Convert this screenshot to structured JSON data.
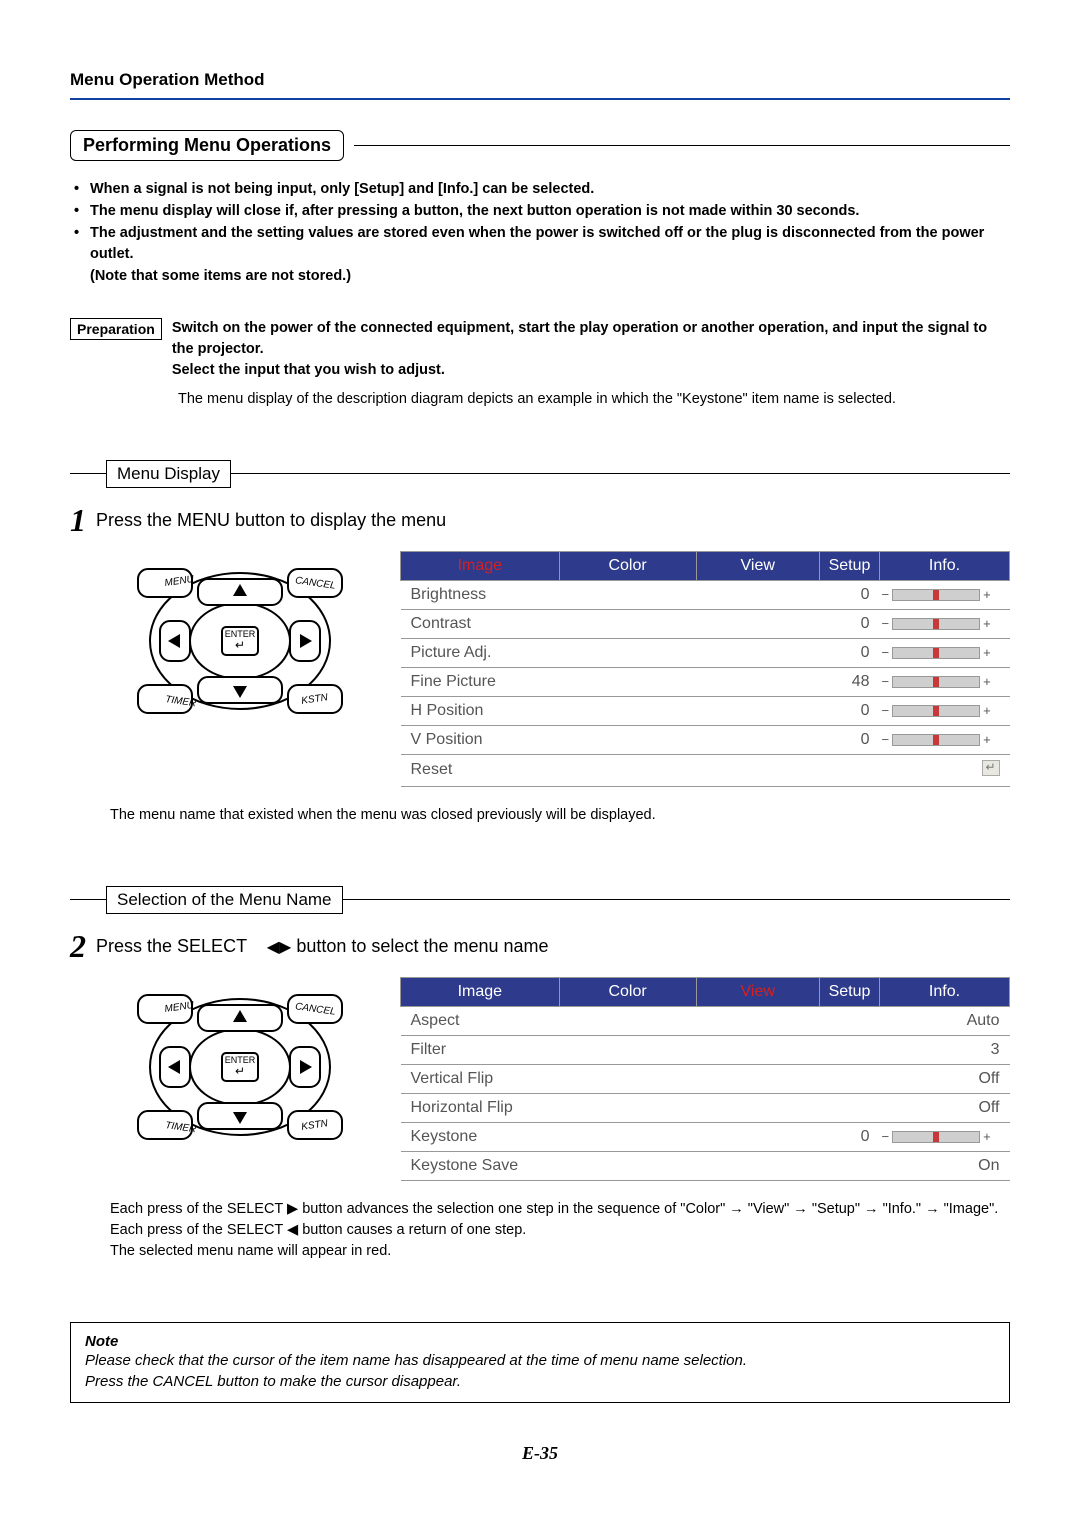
{
  "header": {
    "title": "Menu Operation Method"
  },
  "section": {
    "title": "Performing Menu Operations"
  },
  "bullets": [
    "When a signal is not being input, only [Setup] and [Info.] can be selected.",
    "The menu display will close if, after pressing a button, the next button operation is not made within 30 seconds.",
    "The adjustment and the setting values are stored even when the power is switched off or the plug is disconnected from the power outlet.",
    "(Note that some items are not stored.)"
  ],
  "preparation": {
    "label": "Preparation",
    "bold_line1": "Switch on the power of the connected equipment, start the play operation or another operation, and input the signal to the projector.",
    "bold_line2": "Select the input that you wish to adjust.",
    "plain_line": "The menu display of the description diagram depicts an example in which the \"Keystone\" item name is selected."
  },
  "remote_labels": {
    "menu": "MENU",
    "cancel": "CANCEL",
    "enter": "ENTER",
    "timer": "TIMER",
    "kstn": "KSTN"
  },
  "step1": {
    "bar_label": "Menu Display",
    "num": "1",
    "text": "Press the MENU button to display the menu",
    "note_after": "The menu name that existed when the menu was closed previously will be displayed.",
    "osd": {
      "tabs": [
        "Image",
        "Color",
        "View",
        "Setup",
        "Info."
      ],
      "active_index": 0,
      "rows": [
        {
          "label": "Brightness",
          "value": "0",
          "bar_fill": 50
        },
        {
          "label": "Contrast",
          "value": "0",
          "bar_fill": 50
        },
        {
          "label": "Picture Adj.",
          "value": "0",
          "bar_fill": 50
        },
        {
          "label": "Fine Picture",
          "value": "48",
          "bar_fill": 50
        },
        {
          "label": "H Position",
          "value": "0",
          "bar_fill": 50
        },
        {
          "label": "V Position",
          "value": "0",
          "bar_fill": 50
        },
        {
          "label": "Reset",
          "value": "",
          "bar_fill": null,
          "reset": true
        }
      ]
    }
  },
  "step2": {
    "bar_label": "Selection of the Menu Name",
    "num": "2",
    "text_a": "Press the SELECT ",
    "text_b": " button to select the menu name",
    "arrows": "◀▶",
    "osd": {
      "tabs": [
        "Image",
        "Color",
        "View",
        "Setup",
        "Info."
      ],
      "active_index": 2,
      "rows": [
        {
          "label": "Aspect",
          "right": "Auto"
        },
        {
          "label": "Filter",
          "right": "3"
        },
        {
          "label": "Vertical Flip",
          "right": "Off"
        },
        {
          "label": "Horizontal Flip",
          "right": "Off"
        },
        {
          "label": "Keystone",
          "value": "0",
          "bar_fill": 50
        },
        {
          "label": "Keystone Save",
          "right": "On"
        }
      ]
    },
    "para": "Each press of the SELECT ▶ button advances the selection one step in the sequence of \"Color\" → \"View\" → \"Setup\" → \"Info.\" → \"Image\". Each press of the SELECT ◀ button causes a return of one step.\nThe selected menu name will appear in red."
  },
  "note": {
    "label": "Note",
    "lines": [
      "Please check that the cursor of the item name has disappeared at the time of menu name selection.",
      "Press the CANCEL button to make the cursor disappear."
    ]
  },
  "page": "E-35"
}
